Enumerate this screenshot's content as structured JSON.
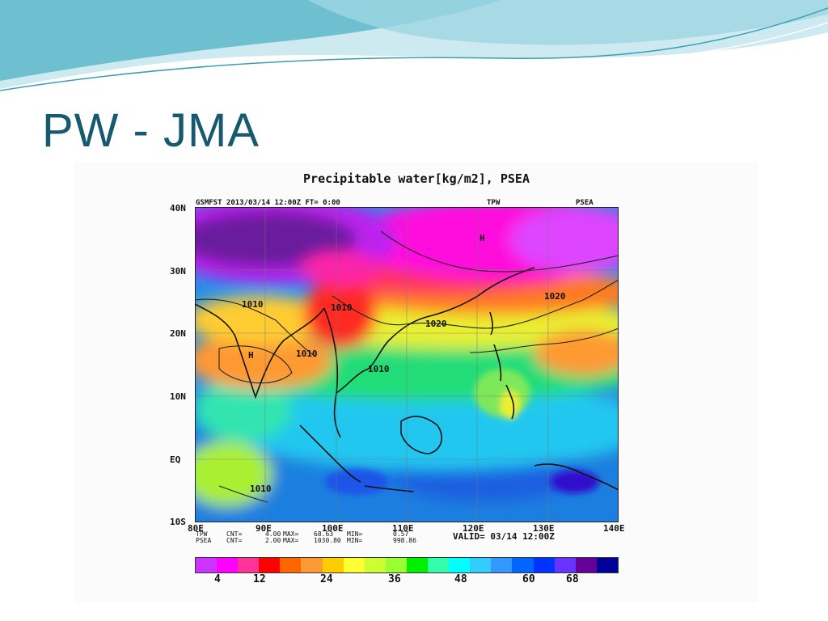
{
  "slide": {
    "title": "PW - JMA",
    "colors": {
      "title": "#17596e",
      "wave_dark": "#5fb8c9",
      "wave_light": "#bfe6ee"
    }
  },
  "figure": {
    "title": "Precipitable water[kg/m2], PSEA",
    "header_left": "GSMFST 2013/03/14 12:00Z FT= 0:00",
    "header_mid": "TPW",
    "header_right": "PSEA",
    "lat_labels": [
      "40N",
      "30N",
      "20N",
      "10N",
      "EQ",
      "10S"
    ],
    "lon_labels": [
      "80E",
      "90E",
      "100E",
      "110E",
      "120E",
      "130E",
      "140E"
    ],
    "stats": {
      "row1_names": "TPW",
      "row2_names": "PSEA",
      "cnt_label": "CNT=",
      "tpw": {
        "cnt": "4.00",
        "max": "68.63",
        "min": "0.57"
      },
      "psea": {
        "cnt": "2.00",
        "max": "1030.80",
        "min": "998.86"
      },
      "max_label": "MAX=",
      "min_label": "MIN="
    },
    "valid": "VALID= 03/14 12:00Z",
    "isobar_labels": [
      "1010",
      "1010",
      "1010",
      "1010",
      "1020",
      "1020",
      "1010"
    ],
    "high_markers": [
      "H",
      "H"
    ],
    "colorbar": {
      "colors": [
        "#cc33ff",
        "#ff00ff",
        "#ff3399",
        "#ff0000",
        "#ff6600",
        "#ff9933",
        "#ffcc00",
        "#ffff33",
        "#ccff33",
        "#99ff33",
        "#00ee00",
        "#33ffaa",
        "#00ffff",
        "#33ccff",
        "#3399ff",
        "#0066ff",
        "#0033ff",
        "#6633ff",
        "#660099",
        "#000099"
      ],
      "labels": [
        "4",
        "12",
        "24",
        "36",
        "48",
        "60",
        "68"
      ]
    }
  },
  "chart_data": {
    "type": "heatmap",
    "title": "Precipitable water[kg/m2], PSEA",
    "variable": "TPW",
    "overlay": "PSEA",
    "lon_range": [
      80,
      140
    ],
    "lat_range": [
      -10,
      40
    ],
    "valid": "03/14 12:00Z",
    "tpw_max": 68.63,
    "tpw_min": 0.57,
    "psea_max": 1030.8,
    "psea_min": 998.86,
    "contour_interval_tpw": 4.0,
    "contour_interval_psea": 2.0
  }
}
